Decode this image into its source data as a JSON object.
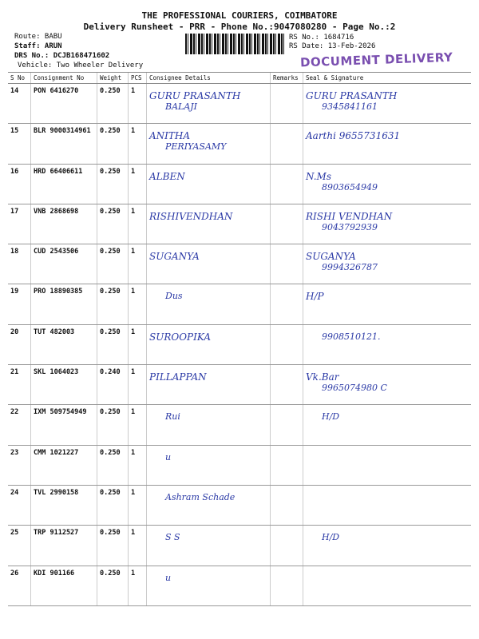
{
  "header": {
    "title": "THE PROFESSIONAL COURIERS, COIMBATORE",
    "subtitle": "Delivery Runsheet - PRR - Phone No.:9047080280 - Page No.:2"
  },
  "meta": {
    "route": "Route: BABU",
    "staff": "Staff: ARUN",
    "drs": "DRS No.: DCJB168471602",
    "vehicle": "Vehicle: Two Wheeler Delivery",
    "rs_no": "RS No.: 1684716",
    "rs_date": "RS Date: 13-Feb-2026"
  },
  "stamp": "DOCUMENT DELIVERY",
  "columns": [
    "S No",
    "Consignment No",
    "Weight",
    "PCS",
    "Consignee Details",
    "Remarks",
    "Seal & Signature"
  ],
  "rows": [
    {
      "sno": "14",
      "cn": "PON 6416270",
      "wt": "0.250",
      "pcs": "1",
      "consignee": "GURU PRASANTH",
      "consignee2": "BALAJI",
      "sig": "GURU PRASANTH",
      "sig2": "9345841161"
    },
    {
      "sno": "15",
      "cn": "BLR 9000314961",
      "wt": "0.250",
      "pcs": "1",
      "consignee": "ANITHA",
      "consignee2": "PERIYASAMY",
      "sig": "Aarthi 9655731631",
      "sig2": ""
    },
    {
      "sno": "16",
      "cn": "HRD 66406611",
      "wt": "0.250",
      "pcs": "1",
      "consignee": "ALBEN",
      "consignee2": "",
      "sig": "N.Ms",
      "sig2": "8903654949"
    },
    {
      "sno": "17",
      "cn": "VNB 2868698",
      "wt": "0.250",
      "pcs": "1",
      "consignee": "RISHIVENDHAN",
      "consignee2": "",
      "sig": "RISHI VENDHAN",
      "sig2": "9043792939"
    },
    {
      "sno": "18",
      "cn": "CUD 2543506",
      "wt": "0.250",
      "pcs": "1",
      "consignee": "SUGANYA",
      "consignee2": "",
      "sig": "SUGANYA",
      "sig2": "9994326787"
    },
    {
      "sno": "19",
      "cn": "PRO 18890385",
      "wt": "0.250",
      "pcs": "1",
      "consignee": "",
      "consignee2": "Dus",
      "sig": "H/P",
      "sig2": ""
    },
    {
      "sno": "20",
      "cn": "TUT 482003",
      "wt": "0.250",
      "pcs": "1",
      "consignee": "SUROOPIKA",
      "consignee2": "",
      "sig": "",
      "sig2": "9908510121."
    },
    {
      "sno": "21",
      "cn": "SKL 1064023",
      "wt": "0.240",
      "pcs": "1",
      "consignee": "PILLAPPAN",
      "consignee2": "",
      "sig": "Vk.Bar",
      "sig2": "9965074980 C"
    },
    {
      "sno": "22",
      "cn": "IXM 509754949",
      "wt": "0.250",
      "pcs": "1",
      "consignee": "",
      "consignee2": "Rui",
      "sig": "",
      "sig2": "H/D"
    },
    {
      "sno": "23",
      "cn": "CMM 1021227",
      "wt": "0.250",
      "pcs": "1",
      "consignee": "",
      "consignee2": "u",
      "sig": "",
      "sig2": ""
    },
    {
      "sno": "24",
      "cn": "TVL 2990158",
      "wt": "0.250",
      "pcs": "1",
      "consignee": "",
      "consignee2": "Ashram Schade",
      "sig": "",
      "sig2": ""
    },
    {
      "sno": "25",
      "cn": "TRP 9112527",
      "wt": "0.250",
      "pcs": "1",
      "consignee": "",
      "consignee2": "S S",
      "sig": "",
      "sig2": "H/D"
    },
    {
      "sno": "26",
      "cn": "KDI 901166",
      "wt": "0.250",
      "pcs": "1",
      "consignee": "",
      "consignee2": "u",
      "sig": "",
      "sig2": ""
    }
  ]
}
